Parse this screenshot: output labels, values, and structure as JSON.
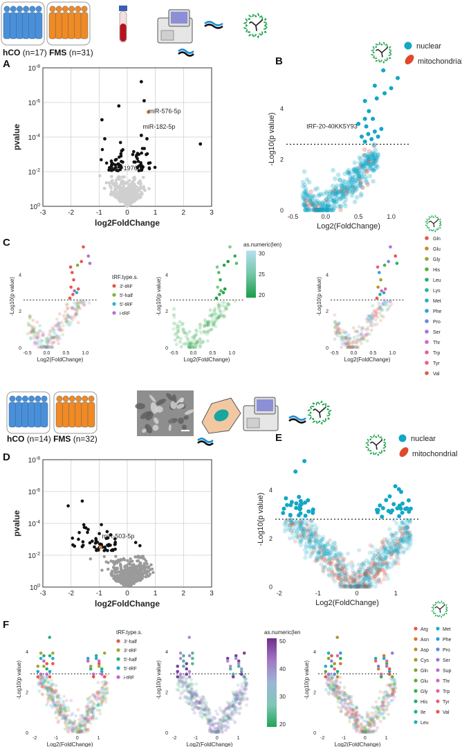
{
  "panels": {
    "A": "A",
    "B": "B",
    "C": "C",
    "D": "D",
    "E": "E",
    "F": "F"
  },
  "cohort1": {
    "hco_label": "hCO",
    "hco_n": "(n=17)",
    "fms_label": "FMS",
    "fms_n": "(n=31)"
  },
  "cohort2": {
    "hco_label": "hCO",
    "hco_n": "(n=14)",
    "fms_label": "FMS",
    "fms_n": "(n=32)"
  },
  "legend_origin": {
    "nuclear": "nuclear",
    "mitochondrial": "mitochondrial"
  },
  "colors": {
    "blue_people": "#4a90d9",
    "orange_people": "#f08a24",
    "teal": "#13a7c4",
    "mito": "#e0482a",
    "gray_points": "#cfcfcf",
    "sig_points": "#111111",
    "highlight": "#e07b2a"
  },
  "tick_labels": {
    "volcano_p_y": [
      "10^-8",
      "10^-6",
      "10^-4",
      "10^-2",
      "10^0"
    ],
    "volcano_p_x": [
      "-3",
      "-2",
      "-1",
      "0",
      "1",
      "2",
      "3"
    ],
    "b_y": [
      "0",
      "2",
      "4"
    ],
    "b_x": [
      "-0.5",
      "0.0",
      "0.5",
      "1.0"
    ],
    "e_y": [
      "0",
      "2",
      "4"
    ],
    "e_x": [
      "-2",
      "-1",
      "0",
      "1"
    ]
  },
  "chart_data": [
    {
      "id": "A",
      "type": "scatter",
      "title": "",
      "xlabel": "log2FoldChange",
      "ylabel": "pvalue",
      "xlim": [
        -3,
        3
      ],
      "ylim_log10": [
        0,
        -8
      ],
      "annotations": [
        {
          "text": "miR-576-5p",
          "x": 0.75,
          "log10p": -5.5
        },
        {
          "text": "miR-182-5p",
          "x": 0.55,
          "log10p": -4.6
        },
        {
          "text": "miR-1976",
          "x": -0.6,
          "log10p": -2.2
        }
      ]
    },
    {
      "id": "B",
      "type": "scatter",
      "xlabel": "Log2(FoldChange)",
      "ylabel": "-Log10(p value)",
      "xlim": [
        -0.6,
        1.3
      ],
      "ylim": [
        0,
        5.6
      ],
      "threshold": 2.6,
      "annotations": [
        {
          "text": "tRF-20-40KK5Y93",
          "x": 0.5,
          "y": 3.3
        }
      ]
    },
    {
      "id": "C1",
      "type": "scatter",
      "xlabel": "Log2(FoldChange)",
      "ylabel": "-Log10(p value)",
      "legend_title": "tRF.type.s.",
      "legend": [
        {
          "label": "3'-tRF",
          "color": "#e8564a"
        },
        {
          "label": "5'-half",
          "color": "#7fb13a"
        },
        {
          "label": "5'-tRF",
          "color": "#28b6c7"
        },
        {
          "label": "i-tRF",
          "color": "#b072cf"
        }
      ]
    },
    {
      "id": "C2",
      "type": "scatter",
      "xlabel": "Log2(FoldChange)",
      "ylabel": "-Log10(p value)",
      "colorbar_title": "as.numeric(len)",
      "colorbar_ticks": [
        "30",
        "25",
        "20"
      ]
    },
    {
      "id": "C3",
      "type": "scatter",
      "xlabel": "Log2(FoldChange)",
      "ylabel": "-Log10(p value)",
      "legend": [
        {
          "label": "Gln",
          "color": "#e8564a"
        },
        {
          "label": "Glu",
          "color": "#c98d2a"
        },
        {
          "label": "Gly",
          "color": "#9aa534"
        },
        {
          "label": "His",
          "color": "#56b03f"
        },
        {
          "label": "Leu",
          "color": "#23b06a"
        },
        {
          "label": "Lys",
          "color": "#22b39a"
        },
        {
          "label": "Met",
          "color": "#21b0be"
        },
        {
          "label": "Phe",
          "color": "#2aa3dc"
        },
        {
          "label": "Pro",
          "color": "#6e89e6"
        },
        {
          "label": "Ser",
          "color": "#a872e3"
        },
        {
          "label": "Thr",
          "color": "#d664c9"
        },
        {
          "label": "Trp",
          "color": "#eb5e9c"
        },
        {
          "label": "Tyr",
          "color": "#ef5f7c"
        },
        {
          "label": "Val",
          "color": "#e8564a"
        }
      ]
    },
    {
      "id": "D",
      "type": "scatter",
      "xlabel": "log2FoldChange",
      "ylabel": "pvalue",
      "xlim": [
        -3,
        3
      ],
      "ylim_log10": [
        0,
        -8
      ],
      "annotations": [
        {
          "text": "miR-503-5p",
          "x": -0.9,
          "log10p": -3.2
        }
      ]
    },
    {
      "id": "E",
      "type": "scatter",
      "xlabel": "Log2(FoldChange)",
      "ylabel": "-Log10(p value)",
      "xlim": [
        -2.1,
        1.6
      ],
      "ylim": [
        0,
        5.6
      ],
      "threshold": 2.8
    },
    {
      "id": "F1",
      "type": "scatter",
      "xlabel": "Log2(FoldChange)",
      "ylabel": "-Log10(p value)",
      "legend_title": "tRF.type.s.",
      "legend": [
        {
          "label": "3'-half",
          "color": "#e8564a"
        },
        {
          "label": "3'-tRF",
          "color": "#a2a733"
        },
        {
          "label": "5'-half",
          "color": "#27b378"
        },
        {
          "label": "5'-tRF",
          "color": "#22a9d0"
        },
        {
          "label": "i-tRF",
          "color": "#c963c9"
        }
      ]
    },
    {
      "id": "F2",
      "type": "scatter",
      "xlabel": "Log2(FoldChange)",
      "ylabel": "-Log10(p value)",
      "colorbar_title": "as.numeric(len",
      "colorbar_ticks": [
        "50",
        "40",
        "30",
        "20"
      ]
    },
    {
      "id": "F3",
      "type": "scatter",
      "xlabel": "Log2(FoldChange)",
      "ylabel": "-Log10(p value)",
      "legend": [
        {
          "label": "Arg",
          "color": "#e8564a"
        },
        {
          "label": "Asn",
          "color": "#d9742d"
        },
        {
          "label": "Asp",
          "color": "#c48d28"
        },
        {
          "label": "Cys",
          "color": "#a59a2a"
        },
        {
          "label": "Gln",
          "color": "#86a42d"
        },
        {
          "label": "Glu",
          "color": "#5cad34"
        },
        {
          "label": "Gly",
          "color": "#30b14a"
        },
        {
          "label": "His",
          "color": "#1bb170"
        },
        {
          "label": "Ile",
          "color": "#1ab394"
        },
        {
          "label": "Leu",
          "color": "#1cb1b3"
        },
        {
          "label": "Met",
          "color": "#21a9cd"
        },
        {
          "label": "Phe",
          "color": "#2d9ce2"
        },
        {
          "label": "Pro",
          "color": "#5f87ea"
        },
        {
          "label": "Ser",
          "color": "#9077e6"
        },
        {
          "label": "Sup",
          "color": "#b96bd8"
        },
        {
          "label": "Thr",
          "color": "#d664c4"
        },
        {
          "label": "Trp",
          "color": "#e75fa3"
        },
        {
          "label": "Tyr",
          "color": "#ee5d82"
        },
        {
          "label": "Val",
          "color": "#e8564a"
        }
      ]
    }
  ]
}
